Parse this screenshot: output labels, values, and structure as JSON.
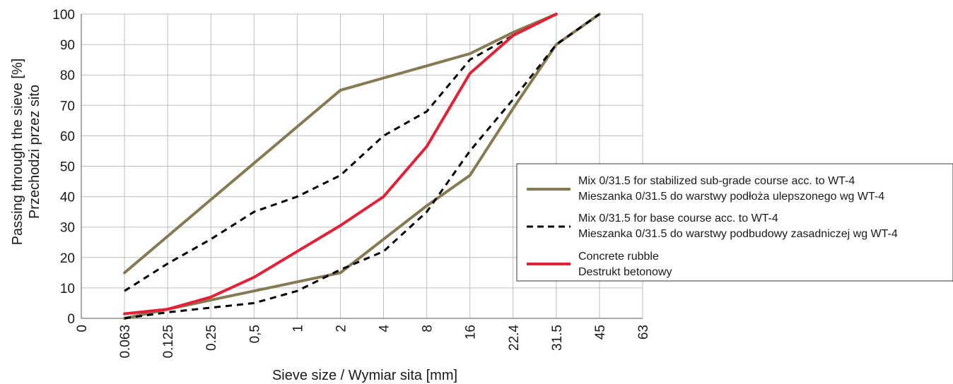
{
  "chart_data": {
    "type": "line",
    "xlabel": "Sieve size / Wymiar sita [mm]",
    "ylabel_lines": [
      "Passing through the sieve [%]",
      "Przechodzi przez sito"
    ],
    "categories": [
      "0",
      "0.063",
      "0.125",
      "0.25",
      "0,5",
      "1",
      "2",
      "4",
      "8",
      "16",
      "22.4",
      "31.5",
      "45",
      "63"
    ],
    "ylim": [
      0,
      100
    ],
    "yticks": [
      0,
      10,
      20,
      30,
      40,
      50,
      60,
      70,
      80,
      90,
      100
    ],
    "grid": true,
    "legend_position": "right",
    "series": [
      {
        "name_lines": [
          "Mix 0/31.5 for stabilized sub-grade course acc. to WT-4",
          "Mieszanka 0/31.5 do warstwy podłoża ulepszonego wg WT-4"
        ],
        "color": "#857a52",
        "style": "solid",
        "role": "upper limit",
        "points": [
          [
            1,
            15
          ],
          [
            2,
            27
          ],
          [
            3,
            39
          ],
          [
            4,
            51
          ],
          [
            5,
            63
          ],
          [
            6,
            75
          ],
          [
            7,
            79
          ],
          [
            8,
            83
          ],
          [
            9,
            87
          ],
          [
            10,
            94
          ],
          [
            11,
            100
          ]
        ]
      },
      {
        "name_lines": [
          "Mix 0/31.5 for stabilized sub-grade course acc. to WT-4",
          "Mieszanka 0/31.5 do warstwy podłoża ulepszonego wg WT-4"
        ],
        "color": "#857a52",
        "style": "solid",
        "role": "lower limit",
        "legend": false,
        "points": [
          [
            1,
            0
          ],
          [
            2,
            3
          ],
          [
            3,
            6
          ],
          [
            4,
            9
          ],
          [
            5,
            12
          ],
          [
            6,
            15
          ],
          [
            7,
            26
          ],
          [
            8,
            37
          ],
          [
            9,
            47
          ],
          [
            10,
            69
          ],
          [
            11,
            90
          ],
          [
            12,
            100
          ]
        ]
      },
      {
        "name_lines": [
          "Mix 0/31.5 for base course acc. to WT-4",
          "Mieszanka 0/31.5 do warstwy podbudowy zasadniczej wg WT-4"
        ],
        "color": "#000000",
        "style": "dashed",
        "role": "upper limit",
        "points": [
          [
            1,
            9
          ],
          [
            2,
            18
          ],
          [
            3,
            26
          ],
          [
            4,
            35
          ],
          [
            5,
            40
          ],
          [
            6,
            47
          ],
          [
            7,
            60
          ],
          [
            8,
            68
          ],
          [
            9,
            85
          ],
          [
            10,
            93
          ],
          [
            11,
            100
          ]
        ]
      },
      {
        "name_lines": [
          "Mix 0/31.5 for base course acc. to WT-4",
          "Mieszanka 0/31.5 do warstwy podbudowy zasadniczej wg WT-4"
        ],
        "color": "#000000",
        "style": "dashed",
        "role": "lower limit",
        "legend": false,
        "points": [
          [
            1,
            0
          ],
          [
            2,
            2
          ],
          [
            3,
            3.5
          ],
          [
            4,
            5
          ],
          [
            5,
            9
          ],
          [
            6,
            16
          ],
          [
            7,
            22
          ],
          [
            8,
            35
          ],
          [
            9,
            55
          ],
          [
            10,
            72
          ],
          [
            11,
            90
          ],
          [
            12,
            100
          ]
        ]
      },
      {
        "name_lines": [
          "Concrete rubble",
          "Destrukt betonowy"
        ],
        "color": "#e41f36",
        "style": "solid",
        "role": "material",
        "points": [
          [
            1,
            1.5
          ],
          [
            2,
            3
          ],
          [
            3,
            7
          ],
          [
            4,
            13.5
          ],
          [
            5,
            22
          ],
          [
            6,
            30.5
          ],
          [
            7,
            40
          ],
          [
            8,
            56.5
          ],
          [
            9,
            80.5
          ],
          [
            10,
            93
          ],
          [
            11,
            100
          ]
        ]
      }
    ]
  }
}
